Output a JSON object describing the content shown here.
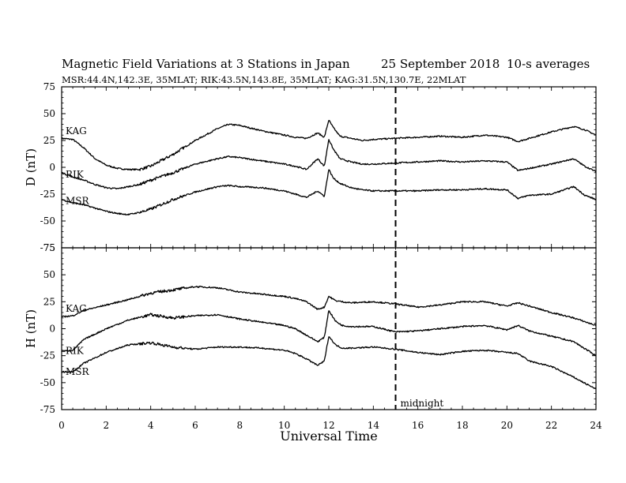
{
  "chart_data": {
    "title": "Magnetic Field Variations at 3 Stations in Japan",
    "date": "25 September 2018",
    "averaging": "10-s averages",
    "subtitle": "MSR:44.4N,142.3E, 35MLAT;  RIK:43.5N,143.8E, 35MLAT;  KAG:31.5N,130.7E, 22MLAT",
    "xlabel": "Universal Time",
    "xlim": [
      0,
      24
    ],
    "xticks": [
      "0",
      "2",
      "4",
      "6",
      "8",
      "10",
      "12",
      "14",
      "16",
      "18",
      "20",
      "22",
      "24"
    ],
    "marker": {
      "x": 15,
      "label": "midnight",
      "style": "dashed"
    },
    "charts": [
      {
        "type": "line",
        "ylabel": "D (nT)",
        "ylim": [
          -75,
          75
        ],
        "yticks": [
          "75",
          "50",
          "25",
          "0",
          "-25",
          "-50",
          "-75"
        ],
        "series": [
          {
            "name": "KAG",
            "x": [
              0,
              0.5,
              1,
              1.5,
              2,
              2.5,
              3,
              3.5,
              4,
              5,
              6,
              7,
              7.5,
              8,
              9,
              10,
              10.5,
              11,
              11.5,
              11.8,
              12,
              12.2,
              12.5,
              13,
              13.5,
              14,
              15,
              16,
              17,
              18,
              19,
              20,
              20.5,
              21,
              22,
              23,
              23.5,
              24
            ],
            "y": [
              27,
              26,
              18,
              8,
              2,
              -1,
              -2,
              -2,
              1,
              12,
              25,
              36,
              40,
              39,
              34,
              30,
              28,
              27,
              32,
              28,
              44,
              37,
              29,
              27,
              25,
              26,
              27,
              28,
              29,
              28,
              30,
              28,
              24,
              27,
              33,
              38,
              35,
              30
            ]
          },
          {
            "name": "RIK",
            "x": [
              0,
              0.5,
              1,
              1.5,
              2,
              2.5,
              3,
              3.5,
              4,
              5,
              6,
              7,
              7.5,
              8,
              9,
              10,
              10.5,
              11,
              11.5,
              11.8,
              12,
              12.2,
              12.5,
              13,
              13.5,
              14,
              15,
              16,
              17,
              18,
              19,
              20,
              20.5,
              21,
              22,
              23,
              23.5,
              24
            ],
            "y": [
              -5,
              -9,
              -12,
              -16,
              -19,
              -20,
              -18,
              -16,
              -12,
              -5,
              3,
              8,
              10,
              9,
              6,
              3,
              1,
              -2,
              8,
              1,
              26,
              17,
              8,
              5,
              3,
              3,
              4,
              5,
              6,
              5,
              6,
              5,
              -3,
              -1,
              3,
              8,
              1,
              -4
            ]
          },
          {
            "name": "MSR",
            "x": [
              0,
              0.5,
              1,
              1.5,
              2,
              2.5,
              3,
              3.5,
              4,
              5,
              6,
              7,
              7.5,
              8,
              9,
              10,
              10.5,
              11,
              11.5,
              11.8,
              12,
              12.2,
              12.5,
              13,
              13.5,
              14,
              15,
              16,
              17,
              18,
              19,
              20,
              20.5,
              21,
              22,
              23,
              23.5,
              24
            ],
            "y": [
              -30,
              -33,
              -35,
              -38,
              -41,
              -43,
              -44,
              -42,
              -39,
              -30,
              -23,
              -18,
              -17,
              -18,
              -19,
              -22,
              -25,
              -28,
              -22,
              -27,
              -2,
              -10,
              -15,
              -19,
              -21,
              -22,
              -22,
              -22,
              -21,
              -21,
              -20,
              -21,
              -29,
              -26,
              -25,
              -18,
              -26,
              -30
            ]
          }
        ]
      },
      {
        "type": "line",
        "ylabel": "H (nT)",
        "ylim": [
          -75,
          75
        ],
        "yticks": [
          "75",
          "50",
          "25",
          "0",
          "-25",
          "-50",
          "-75"
        ],
        "series": [
          {
            "name": "KAG",
            "x": [
              0,
              0.5,
              1,
              2,
              3,
              4,
              5,
              6,
              7,
              8,
              9,
              10,
              10.5,
              11,
              11.5,
              11.8,
              12,
              12.3,
              12.6,
              13,
              14,
              15,
              16,
              17,
              18,
              19,
              20,
              20.5,
              21,
              22,
              23,
              24
            ],
            "y": [
              11,
              12,
              17,
              22,
              27,
              33,
              36,
              39,
              38,
              34,
              32,
              30,
              28,
              25,
              18,
              20,
              30,
              26,
              25,
              24,
              25,
              23,
              20,
              22,
              25,
              25,
              21,
              24,
              21,
              15,
              10,
              3
            ]
          },
          {
            "name": "RIK",
            "x": [
              0,
              0.5,
              1,
              2,
              3,
              4,
              5,
              6,
              7,
              8,
              9,
              10,
              10.5,
              11,
              11.5,
              11.8,
              12,
              12.3,
              12.6,
              13,
              14,
              15,
              16,
              17,
              18,
              19,
              20,
              20.5,
              21,
              22,
              23,
              24
            ],
            "y": [
              -21,
              -20,
              -10,
              0,
              8,
              13,
              10,
              12,
              13,
              9,
              6,
              3,
              0,
              -6,
              -12,
              -8,
              17,
              7,
              3,
              2,
              2,
              -3,
              -2,
              0,
              2,
              3,
              -1,
              3,
              -2,
              -7,
              -12,
              -25
            ]
          },
          {
            "name": "MSR",
            "x": [
              0,
              0.5,
              1,
              2,
              3,
              4,
              5,
              6,
              7,
              8,
              9,
              10,
              10.5,
              11,
              11.5,
              11.8,
              12,
              12.3,
              12.6,
              13,
              14,
              15,
              16,
              17,
              18,
              19,
              20,
              20.5,
              21,
              22,
              23,
              24
            ],
            "y": [
              -40,
              -40,
              -32,
              -22,
              -15,
              -13,
              -17,
              -19,
              -17,
              -17,
              -18,
              -20,
              -23,
              -28,
              -34,
              -30,
              -7,
              -15,
              -18,
              -18,
              -17,
              -19,
              -22,
              -24,
              -21,
              -20,
              -22,
              -23,
              -30,
              -35,
              -45,
              -56
            ]
          }
        ]
      }
    ]
  }
}
